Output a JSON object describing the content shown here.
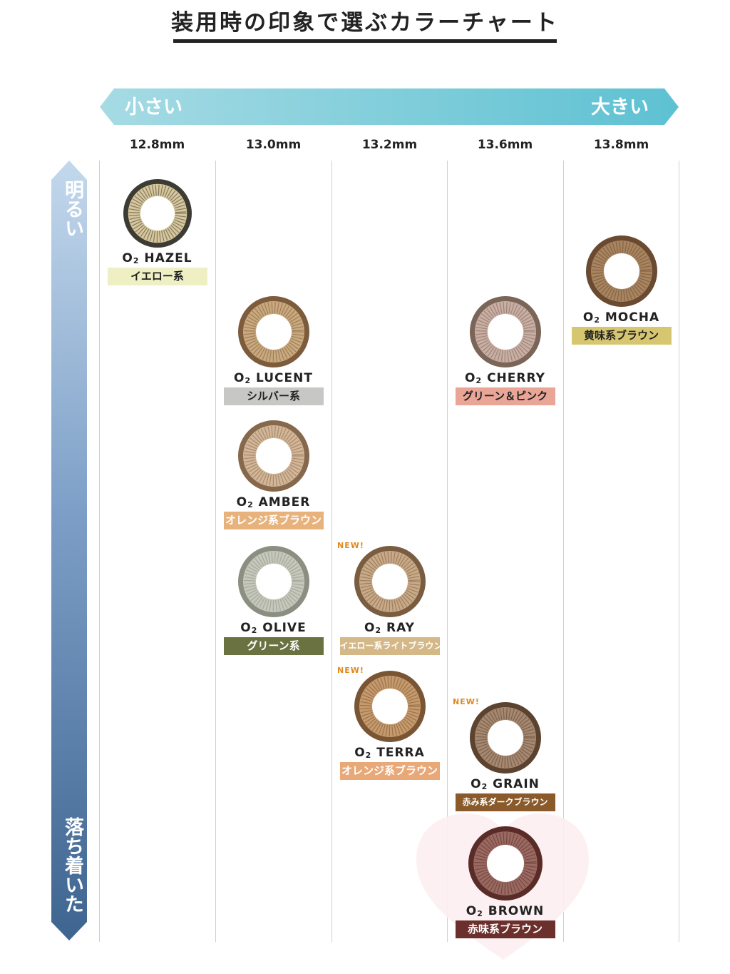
{
  "title": "装用時の印象で選ぶカラーチャート",
  "size_axis": {
    "small_label": "小さい",
    "large_label": "大きい",
    "sizes": [
      "12.8mm",
      "13.0mm",
      "13.2mm",
      "13.6mm",
      "13.8mm"
    ]
  },
  "brightness_axis": {
    "bright_label": "明るい",
    "calm_label": "落ち着いた"
  },
  "new_label": "NEW!",
  "lenses": [
    {
      "prefix": "O",
      "sub": "2",
      "name": "HAZEL",
      "category": "イエロー系",
      "badge_color": "#eef0c4",
      "ring_color": "#3c3c34",
      "iris_color": "#d8c79c",
      "is_new": false
    },
    {
      "prefix": "O",
      "sub": "2",
      "name": "LUCENT",
      "category": "シルバー系",
      "badge_color": "#c7c7c5",
      "ring_color": "#7c5c3c",
      "iris_color": "#c9a97d",
      "is_new": false
    },
    {
      "prefix": "O",
      "sub": "2",
      "name": "AMBER",
      "category": "オレンジ系ブラウン",
      "badge_color": "#e7b27c",
      "ring_color": "#86694d",
      "iris_color": "#d2b697",
      "is_new": false
    },
    {
      "prefix": "O",
      "sub": "2",
      "name": "OLIVE",
      "category": "グリーン系",
      "badge_color": "#6b7242",
      "ring_color": "#8b8f82",
      "iris_color": "#c7c8bc",
      "is_new": false
    },
    {
      "prefix": "O",
      "sub": "2",
      "name": "RAY",
      "category": "イエロー系ライトブラウン",
      "badge_color": "#d4b887",
      "ring_color": "#7a5c40",
      "iris_color": "#c8aa88",
      "is_new": true
    },
    {
      "prefix": "O",
      "sub": "2",
      "name": "TERRA",
      "category": "オレンジ系ブラウン",
      "badge_color": "#e8a878",
      "ring_color": "#7a5534",
      "iris_color": "#c59a6c",
      "is_new": true
    },
    {
      "prefix": "O",
      "sub": "2",
      "name": "CHERRY",
      "category": "グリーン＆ピンク",
      "badge_color": "#e9a596",
      "ring_color": "#7b6458",
      "iris_color": "#c9aea3",
      "is_new": false
    },
    {
      "prefix": "O",
      "sub": "2",
      "name": "GRAIN",
      "category": "赤み系ダークブラウン",
      "badge_color": "#8a5a2a",
      "ring_color": "#5c4330",
      "iris_color": "#a68870",
      "is_new": true
    },
    {
      "prefix": "O",
      "sub": "2",
      "name": "BROWN",
      "category": "赤味系ブラウン",
      "badge_color": "#6b2f2c",
      "ring_color": "#5a2c28",
      "iris_color": "#9a6a62",
      "is_new": false
    },
    {
      "prefix": "O",
      "sub": "2",
      "name": "MOCHA",
      "category": "黄味系ブラウン",
      "badge_color": "#d7c670",
      "ring_color": "#6a4a30",
      "iris_color": "#a88560",
      "is_new": false
    }
  ]
}
